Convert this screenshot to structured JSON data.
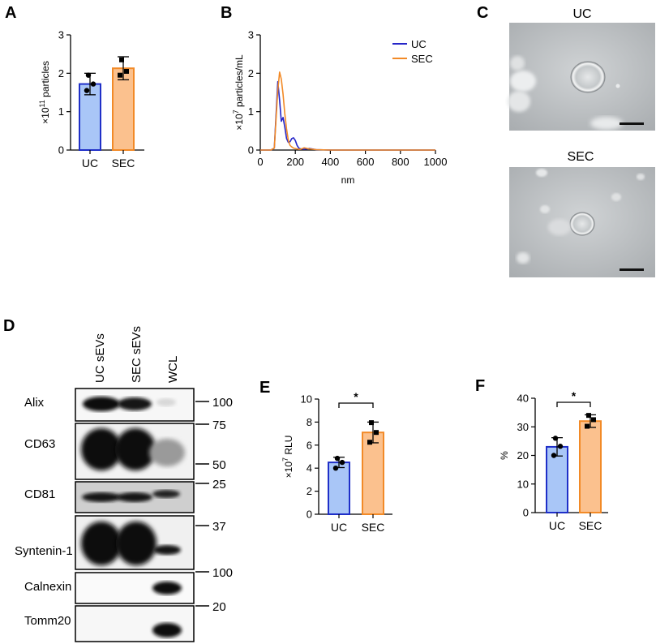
{
  "colors": {
    "uc_fill": "#a9c6f7",
    "uc_edge": "#1f2fc8",
    "sec_fill": "#fbc18e",
    "sec_edge": "#f28a27",
    "uc_line": "#2626c8",
    "sec_line": "#f28a27"
  },
  "panelA": {
    "letter": "A",
    "chart_data": {
      "type": "bar",
      "categories": [
        "UC",
        "SEC"
      ],
      "values": [
        1.72,
        2.13
      ],
      "errors": [
        0.28,
        0.3
      ],
      "points": [
        [
          1.55,
          1.72,
          1.95
        ],
        [
          1.95,
          2.05,
          2.35
        ]
      ],
      "ylabel_base": "×10",
      "ylabel_exp": "11",
      "ylabel_tail": " particles",
      "ylim": [
        0,
        3
      ],
      "yticks": [
        "0",
        "1",
        "2",
        "3"
      ]
    }
  },
  "panelB": {
    "letter": "B",
    "chart_data": {
      "type": "line",
      "xlabel": "nm",
      "ylabel_base": "×10",
      "ylabel_exp": "7",
      "ylabel_tail": " particles/mL",
      "xlim": [
        0,
        1000
      ],
      "ylim": [
        0,
        3
      ],
      "xticks": [
        "0",
        "200",
        "400",
        "600",
        "800",
        "1000"
      ],
      "yticks": [
        "0",
        "1",
        "2",
        "3"
      ],
      "legend_position": "top-right",
      "series": [
        {
          "name": "UC",
          "x": [
            0,
            60,
            80,
            90,
            100,
            110,
            120,
            130,
            140,
            150,
            160,
            170,
            180,
            190,
            200,
            210,
            220,
            230,
            250,
            280,
            320,
            400,
            600,
            800,
            1000
          ],
          "y": [
            0,
            0,
            0.05,
            0.9,
            1.78,
            1.3,
            0.75,
            0.85,
            0.6,
            0.3,
            0.2,
            0.22,
            0.3,
            0.32,
            0.25,
            0.12,
            0.05,
            0.03,
            0.02,
            0.04,
            0.01,
            0,
            0,
            0,
            0
          ]
        },
        {
          "name": "SEC",
          "x": [
            0,
            60,
            80,
            90,
            100,
            110,
            120,
            130,
            140,
            150,
            160,
            170,
            180,
            190,
            200,
            210,
            220,
            230,
            250,
            280,
            320,
            400,
            600,
            800,
            1000
          ],
          "y": [
            0,
            0,
            0.05,
            0.8,
            1.55,
            2.03,
            1.85,
            1.45,
            0.95,
            0.55,
            0.25,
            0.12,
            0.08,
            0.05,
            0.04,
            0.03,
            0.02,
            0.02,
            0.06,
            0.03,
            0.01,
            0,
            0,
            0,
            0
          ]
        }
      ]
    }
  },
  "panelC": {
    "letter": "C",
    "images": [
      {
        "title": "UC"
      },
      {
        "title": "SEC"
      }
    ]
  },
  "panelD": {
    "letter": "D",
    "lanes": [
      "UC sEVs",
      "SEC sEVs",
      "WCL"
    ],
    "blots": [
      {
        "label": "Alix",
        "markers": [
          "100"
        ]
      },
      {
        "label": "CD63",
        "markers": [
          "75",
          "50"
        ]
      },
      {
        "label": "CD81",
        "markers": [
          "25"
        ]
      },
      {
        "label": "Syntenin-1",
        "markers": [
          "37"
        ]
      },
      {
        "label": "Calnexin",
        "markers": [
          "100"
        ]
      },
      {
        "label": "Tomm20",
        "markers": [
          "20"
        ]
      }
    ]
  },
  "panelE": {
    "letter": "E",
    "chart_data": {
      "type": "bar",
      "categories": [
        "UC",
        "SEC"
      ],
      "values": [
        4.5,
        7.1
      ],
      "errors": [
        0.45,
        0.9
      ],
      "points": [
        [
          4.0,
          4.5,
          4.85
        ],
        [
          6.25,
          7.1,
          7.95
        ]
      ],
      "ylabel_base": "×10",
      "ylabel_exp": "7",
      "ylabel_tail": " RLU",
      "ylim": [
        0,
        10
      ],
      "yticks": [
        "0",
        "2",
        "4",
        "6",
        "8",
        "10"
      ],
      "significance": "*"
    }
  },
  "panelF": {
    "letter": "F",
    "chart_data": {
      "type": "bar",
      "categories": [
        "UC",
        "SEC"
      ],
      "values": [
        23,
        32
      ],
      "errors": [
        3.2,
        2.2
      ],
      "points": [
        [
          20.0,
          23.2,
          26.0
        ],
        [
          30.2,
          32.5,
          34.0
        ]
      ],
      "ylabel": "%",
      "ylim": [
        0,
        40
      ],
      "yticks": [
        "0",
        "10",
        "20",
        "30",
        "40"
      ],
      "significance": "*"
    }
  }
}
